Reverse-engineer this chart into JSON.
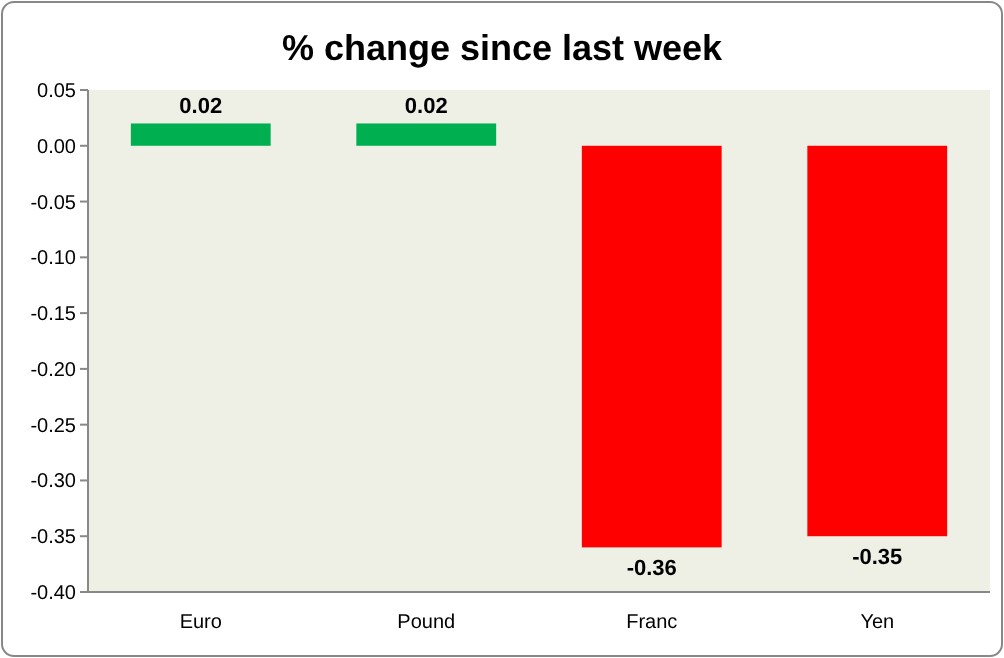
{
  "chart_data": {
    "type": "bar",
    "title": "% change since last week",
    "categories": [
      "Euro",
      "Pound",
      "Franc",
      "Yen"
    ],
    "values": [
      0.02,
      0.02,
      -0.36,
      -0.35
    ],
    "colors": [
      "#00b050",
      "#00b050",
      "#ff0000",
      "#ff0000"
    ],
    "ylim": [
      -0.4,
      0.05
    ],
    "yticks": [
      {
        "value": 0.05,
        "label": "0.05"
      },
      {
        "value": 0,
        "label": "0.00"
      },
      {
        "value": -0.05,
        "label": "-0.05"
      },
      {
        "value": -0.1,
        "label": "-0.10"
      },
      {
        "value": -0.15,
        "label": "-0.15"
      },
      {
        "value": -0.2,
        "label": "-0.20"
      },
      {
        "value": -0.25,
        "label": "-0.25"
      },
      {
        "value": -0.3,
        "label": "-0.30"
      },
      {
        "value": -0.35,
        "label": "-0.35"
      },
      {
        "value": -0.4,
        "label": "-0.40"
      }
    ],
    "data_labels": true
  }
}
